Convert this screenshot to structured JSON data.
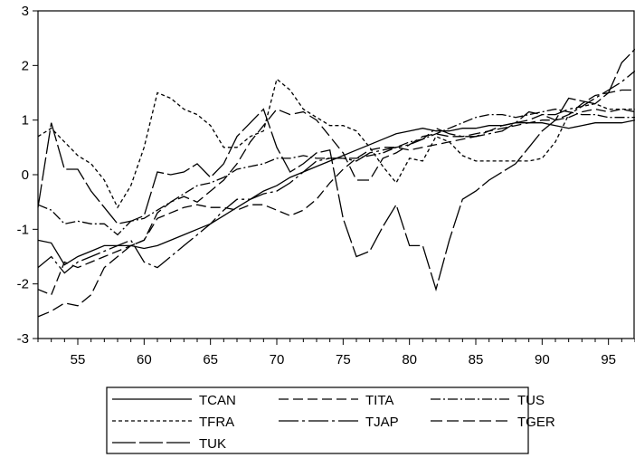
{
  "chart_data": {
    "type": "line",
    "title": "",
    "xlabel": "",
    "ylabel": "",
    "xlim": [
      52,
      97
    ],
    "ylim": [
      -3,
      3
    ],
    "x_ticks": [
      55,
      60,
      65,
      70,
      75,
      80,
      85,
      90,
      95
    ],
    "y_ticks": [
      -3,
      -2,
      -1,
      0,
      1,
      2,
      3
    ],
    "grid": false,
    "legend_position": "bottom",
    "x": [
      52,
      53,
      54,
      55,
      56,
      57,
      58,
      59,
      60,
      61,
      62,
      63,
      64,
      65,
      66,
      67,
      68,
      69,
      70,
      71,
      72,
      73,
      74,
      75,
      76,
      77,
      78,
      79,
      80,
      81,
      82,
      83,
      84,
      85,
      86,
      87,
      88,
      89,
      90,
      91,
      92,
      93,
      94,
      95,
      96,
      97
    ],
    "series": [
      {
        "name": "TCAN",
        "dash": "",
        "values": [
          -1.2,
          -1.25,
          -1.65,
          -1.5,
          -1.4,
          -1.3,
          -1.3,
          -1.3,
          -1.35,
          -1.3,
          -1.2,
          -1.1,
          -1.0,
          -0.9,
          -0.75,
          -0.6,
          -0.45,
          -0.3,
          -0.2,
          -0.05,
          0.05,
          0.15,
          0.25,
          0.35,
          0.45,
          0.55,
          0.65,
          0.75,
          0.8,
          0.85,
          0.8,
          0.8,
          0.85,
          0.85,
          0.9,
          0.9,
          0.95,
          0.95,
          0.95,
          0.9,
          0.85,
          0.9,
          0.95,
          0.95,
          0.95,
          1.0
        ]
      },
      {
        "name": "TITA",
        "dash": "11,5",
        "values": [
          -2.1,
          -2.2,
          -1.6,
          -1.7,
          -1.6,
          -1.5,
          -1.4,
          -1.3,
          -1.2,
          -0.8,
          -0.7,
          -0.6,
          -0.55,
          -0.6,
          -0.6,
          -0.65,
          -0.55,
          -0.55,
          -0.65,
          -0.75,
          -0.65,
          -0.45,
          -0.15,
          0.1,
          0.3,
          0.45,
          0.5,
          0.5,
          0.45,
          0.5,
          0.55,
          0.6,
          0.65,
          0.7,
          0.8,
          0.85,
          0.9,
          0.95,
          1.0,
          1.0,
          1.05,
          1.15,
          1.2,
          1.15,
          1.2,
          1.15
        ]
      },
      {
        "name": "TUS",
        "dash": "11,3,2,3",
        "values": [
          -0.55,
          -0.65,
          -0.9,
          -0.85,
          -0.9,
          -0.9,
          -1.1,
          -0.85,
          -0.8,
          -0.65,
          -0.5,
          -0.35,
          -0.2,
          -0.15,
          -0.05,
          0.1,
          0.15,
          0.2,
          0.3,
          0.3,
          0.35,
          0.3,
          0.3,
          0.3,
          0.3,
          0.35,
          0.4,
          0.5,
          0.6,
          0.65,
          0.75,
          0.85,
          0.95,
          1.05,
          1.1,
          1.1,
          1.05,
          1.1,
          1.15,
          1.2,
          1.15,
          1.1,
          1.1,
          1.05,
          1.05,
          1.05
        ]
      },
      {
        "name": "TFRA",
        "dash": "4,3",
        "values": [
          0.7,
          0.85,
          0.6,
          0.35,
          0.2,
          -0.1,
          -0.6,
          -0.2,
          0.5,
          1.5,
          1.4,
          1.2,
          1.1,
          0.9,
          0.5,
          0.5,
          0.7,
          0.8,
          1.75,
          1.55,
          1.2,
          1.05,
          0.9,
          0.9,
          0.8,
          0.5,
          0.15,
          -0.15,
          0.3,
          0.25,
          0.7,
          0.6,
          0.35,
          0.25,
          0.25,
          0.25,
          0.25,
          0.25,
          0.3,
          0.6,
          1.1,
          1.25,
          1.3,
          1.2,
          1.2,
          1.2
        ]
      },
      {
        "name": "TJAP",
        "dash": "22,4,3,4",
        "values": [
          -1.7,
          -1.5,
          -1.8,
          -1.6,
          -1.5,
          -1.4,
          -1.3,
          -1.2,
          -1.6,
          -1.7,
          -1.5,
          -1.3,
          -1.1,
          -0.9,
          -0.65,
          -0.45,
          -0.45,
          -0.35,
          -0.3,
          -0.15,
          0.05,
          0.25,
          0.3,
          0.3,
          0.25,
          0.4,
          0.45,
          0.5,
          0.55,
          0.65,
          0.85,
          0.75,
          0.7,
          0.7,
          0.75,
          0.8,
          0.95,
          1.15,
          1.1,
          1.1,
          1.2,
          1.25,
          1.4,
          1.55,
          1.7,
          1.9
        ]
      },
      {
        "name": "TGER",
        "dash": "13,5",
        "values": [
          -2.6,
          -2.5,
          -2.35,
          -2.4,
          -2.2,
          -1.7,
          -1.5,
          -1.3,
          -1.2,
          -0.7,
          -0.5,
          -0.4,
          -0.5,
          -0.3,
          -0.1,
          0.2,
          0.6,
          0.9,
          1.2,
          1.1,
          1.15,
          1.0,
          0.7,
          0.4,
          -0.1,
          -0.1,
          0.3,
          0.4,
          0.55,
          0.7,
          0.75,
          0.7,
          0.7,
          0.75,
          0.8,
          0.9,
          0.95,
          1.0,
          1.1,
          1.0,
          1.1,
          1.3,
          1.45,
          1.5,
          1.55,
          1.55
        ]
      },
      {
        "name": "TUK",
        "dash": "26,4",
        "values": [
          -0.6,
          0.95,
          0.1,
          0.1,
          -0.3,
          -0.6,
          -0.9,
          -0.85,
          -0.75,
          0.05,
          0.0,
          0.05,
          0.2,
          -0.05,
          0.2,
          0.7,
          0.95,
          1.2,
          0.5,
          0.05,
          0.2,
          0.4,
          0.45,
          -0.8,
          -1.5,
          -1.4,
          -0.95,
          -0.55,
          -1.3,
          -1.3,
          -2.1,
          -1.2,
          -0.45,
          -0.3,
          -0.1,
          0.05,
          0.2,
          0.5,
          0.8,
          1.0,
          1.4,
          1.35,
          1.3,
          1.5,
          2.05,
          2.3
        ]
      }
    ]
  }
}
